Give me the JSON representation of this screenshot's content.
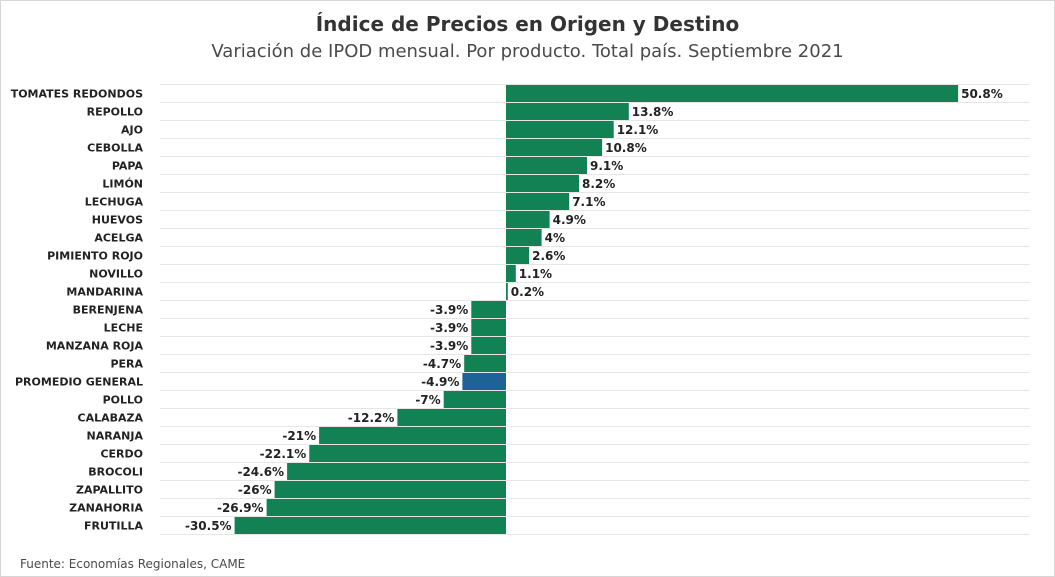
{
  "chart_data": {
    "type": "bar",
    "orientation": "horizontal",
    "title": "Índice de Precios en Origen y Destino",
    "subtitle": "Variación de IPOD mensual. Por producto. Total país. Septiembre 2021",
    "source": "Fuente: Economías Regionales, CAME",
    "unit_suffix": "%",
    "grid": true,
    "categories": [
      "TOMATES REDONDOS",
      "REPOLLO",
      "AJO",
      "CEBOLLA",
      "PAPA",
      "LIMÓN",
      "LECHUGA",
      "HUEVOS",
      "ACELGA",
      "PIMIENTO ROJO",
      "NOVILLO",
      "MANDARINA",
      "BERENJENA",
      "LECHE",
      "MANZANA ROJA",
      "PERA",
      "PROMEDIO GENERAL",
      "POLLO",
      "CALABAZA",
      "NARANJA",
      "CERDO",
      "BROCOLI",
      "ZAPALLITO",
      "ZANAHORIA",
      "FRUTILLA"
    ],
    "values": [
      50.8,
      13.8,
      12.1,
      10.8,
      9.1,
      8.2,
      7.1,
      4.9,
      4,
      2.6,
      1.1,
      0.2,
      -3.9,
      -3.9,
      -3.9,
      -4.7,
      -4.9,
      -7,
      -12.2,
      -21,
      -22.1,
      -24.6,
      -26,
      -26.9,
      -30.5
    ],
    "value_labels": [
      "50.8%",
      "13.8%",
      "12.1%",
      "10.8%",
      "9.1%",
      "8.2%",
      "7.1%",
      "4.9%",
      "4%",
      "2.6%",
      "1.1%",
      "0.2%",
      "-3.9%",
      "-3.9%",
      "-3.9%",
      "-4.7%",
      "-4.9%",
      "-7%",
      "-12.2%",
      "-21%",
      "-22.1%",
      "-24.6%",
      "-26%",
      "-26.9%",
      "-30.5%"
    ],
    "highlight_category": "PROMEDIO GENERAL",
    "colors": {
      "bar": "#128153",
      "highlight": "#1f6296",
      "grid": "#e6e6e6",
      "text": "#222222"
    }
  }
}
